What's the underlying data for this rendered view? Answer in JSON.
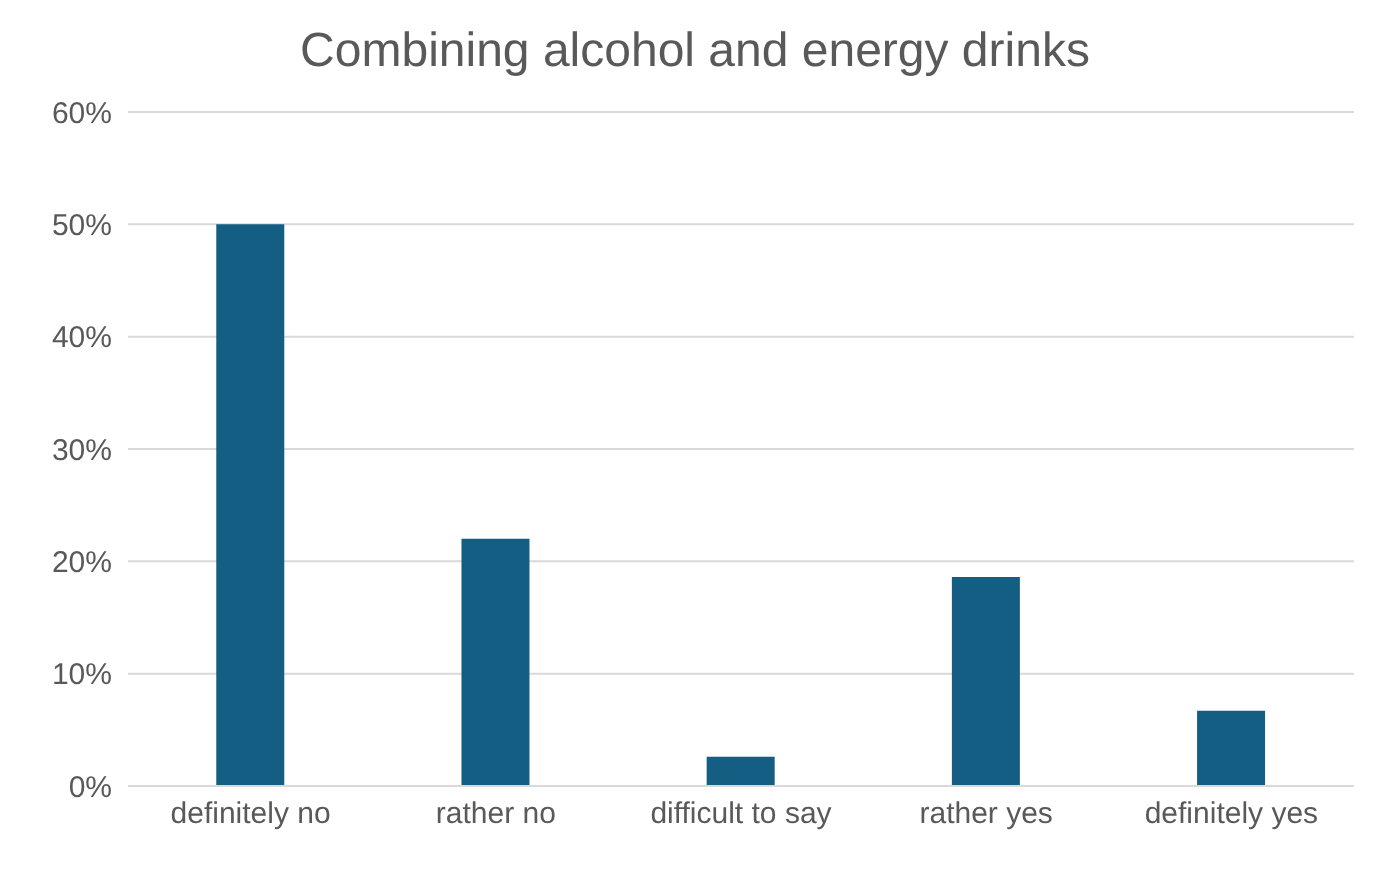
{
  "chart_data": {
    "type": "bar",
    "title": "Combining alcohol and energy drinks",
    "categories": [
      "definitely no",
      "rather no",
      "difficult to say",
      "rather yes",
      "definitely yes"
    ],
    "values": [
      50,
      22,
      2.6,
      18.6,
      6.7
    ],
    "color": "#135e82",
    "ylim": [
      0,
      60
    ],
    "yticks": [
      {
        "value": 0,
        "label": "0%"
      },
      {
        "value": 10,
        "label": "10%"
      },
      {
        "value": 20,
        "label": "20%"
      },
      {
        "value": 30,
        "label": "30%"
      },
      {
        "value": 40,
        "label": "40%"
      },
      {
        "value": 50,
        "label": "50%"
      },
      {
        "value": 60,
        "label": "60%"
      }
    ],
    "grid": "y"
  }
}
